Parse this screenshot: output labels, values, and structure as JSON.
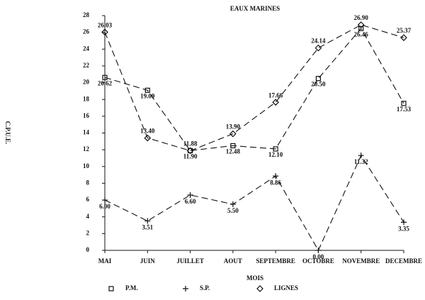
{
  "chart_data": {
    "type": "line",
    "title": "EAUX MARINES",
    "x_label": "MOIS",
    "y_label": "C.P.U.E.",
    "categories": [
      "MAI",
      "JUIN",
      "JUILLET",
      "AOUT",
      "SEPTEMBRE",
      "OCTOBRE",
      "NOVEMBRE",
      "DECEMBRE"
    ],
    "ylim": [
      0,
      28
    ],
    "yticks": [
      0,
      2,
      4,
      6,
      8,
      10,
      12,
      14,
      16,
      18,
      20,
      22,
      24,
      26,
      28
    ],
    "series": [
      {
        "name": "P.M.",
        "marker": "square",
        "color": "#111111",
        "values": [
          20.62,
          19.09,
          11.9,
          12.48,
          12.1,
          20.5,
          26.46,
          17.53
        ],
        "value_labels": [
          "20.62",
          "19.09",
          "11.90",
          "12.48",
          "12.10",
          "20.50",
          "26.46",
          "17.53"
        ]
      },
      {
        "name": "S.P.",
        "marker": "plus",
        "color": "#111111",
        "values": [
          6,
          3.51,
          6.6,
          5.5,
          8.86,
          0,
          11.32,
          3.35
        ],
        "value_labels": [
          "6.00",
          "3.51",
          "6.60",
          "5.50",
          "8.86",
          "0.00",
          "11.32",
          "3.35"
        ]
      },
      {
        "name": "LIGNES",
        "marker": "diamond",
        "color": "#111111",
        "values": [
          26.03,
          13.4,
          11.88,
          13.9,
          17.66,
          24.14,
          26.9,
          25.37
        ],
        "value_labels": [
          "26.03",
          "13.40",
          "11.88",
          "13.90",
          "17.66",
          "24.14",
          "26.90",
          "25.37"
        ]
      }
    ]
  }
}
